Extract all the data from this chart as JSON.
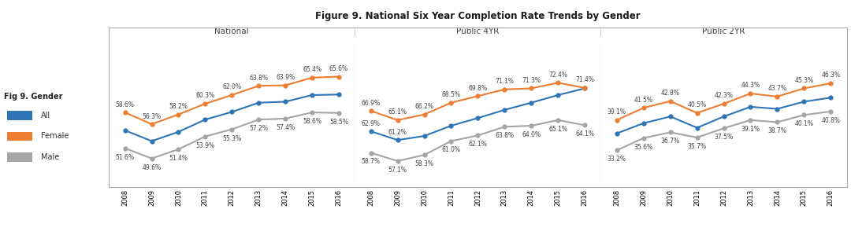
{
  "title": "Figure 9. National Six Year Completion Rate Trends by Gender",
  "years": [
    2008,
    2009,
    2010,
    2011,
    2012,
    2013,
    2014,
    2015,
    2016
  ],
  "national": {
    "all": [
      54.9,
      52.9,
      54.7,
      57.1,
      58.7,
      60.5,
      60.7,
      62.0,
      62.0
    ],
    "female": [
      58.6,
      56.3,
      58.2,
      60.3,
      62.0,
      63.8,
      63.9,
      65.4,
      65.6
    ],
    "male": [
      51.6,
      49.6,
      51.4,
      53.9,
      55.3,
      57.2,
      57.4,
      58.6,
      58.5
    ]
  },
  "public4yr": {
    "all": [
      62.9,
      61.2,
      62.0,
      64.0,
      65.1,
      66.2,
      68.5,
      69.8,
      71.1
    ],
    "female": [
      66.9,
      65.1,
      66.2,
      68.5,
      69.8,
      71.1,
      71.3,
      72.4,
      71.4
    ],
    "male": [
      58.7,
      57.1,
      58.3,
      61.0,
      62.1,
      63.8,
      64.0,
      65.1,
      64.1
    ]
  },
  "public2yr": {
    "all": [
      36.5,
      38.5,
      38.8,
      37.6,
      39.0,
      41.0,
      41.0,
      42.4,
      43.5
    ],
    "female": [
      39.1,
      41.5,
      42.8,
      40.5,
      42.3,
      44.3,
      43.7,
      45.3,
      46.3
    ],
    "male": [
      33.2,
      35.6,
      36.7,
      35.7,
      37.5,
      39.1,
      38.7,
      40.1,
      40.8
    ]
  },
  "nat_female_lbl": [
    "58.6%",
    "56.3%",
    "58.2%",
    "60.3%",
    "62.0%",
    "63.8%",
    "63.9%",
    "65.4%",
    "65.6%"
  ],
  "nat_male_lbl": [
    "51.6%",
    "49.6%",
    "51.4%",
    "53.9%",
    "55.3%",
    "57.2%",
    "57.4%",
    "58.6%",
    "58.5%"
  ],
  "pub4_female_lbl": [
    "66.9%",
    "65.1%",
    "66.2%",
    "68.5%",
    "69.8%",
    "71.1%",
    "71.3%",
    "72.4%",
    "71.4%"
  ],
  "pub4_all_lbl": [
    "62.9%",
    "61.2%",
    "",
    "",
    "",
    "",
    "",
    "",
    ""
  ],
  "pub4_male_lbl": [
    "58.7%",
    "57.1%",
    "58.3%",
    "61.0%",
    "62.1%",
    "63.8%",
    "64.0%",
    "65.1%",
    "64.1%"
  ],
  "pub2_female_lbl": [
    "39.1%",
    "41.5%",
    "42.8%",
    "40.5%",
    "42.3%",
    "44.3%",
    "43.7%",
    "45.3%",
    "46.3%"
  ],
  "pub2_male_lbl": [
    "33.2%",
    "35.6%",
    "36.7%",
    "35.7%",
    "37.5%",
    "39.1%",
    "38.7%",
    "40.1%",
    "40.8%"
  ],
  "nat_ylim": [
    44,
    72
  ],
  "pub4_ylim": [
    52,
    80
  ],
  "pub2_ylim": [
    26,
    54
  ],
  "color_all": "#2e75b6",
  "color_female": "#ed7d31",
  "color_male": "#a5a5a5",
  "panel_labels": [
    "National",
    "Public 4YR",
    "Public 2YR"
  ],
  "legend_title": "Fig 9. Gender",
  "legend_items": [
    "All",
    "Female",
    "Male"
  ]
}
